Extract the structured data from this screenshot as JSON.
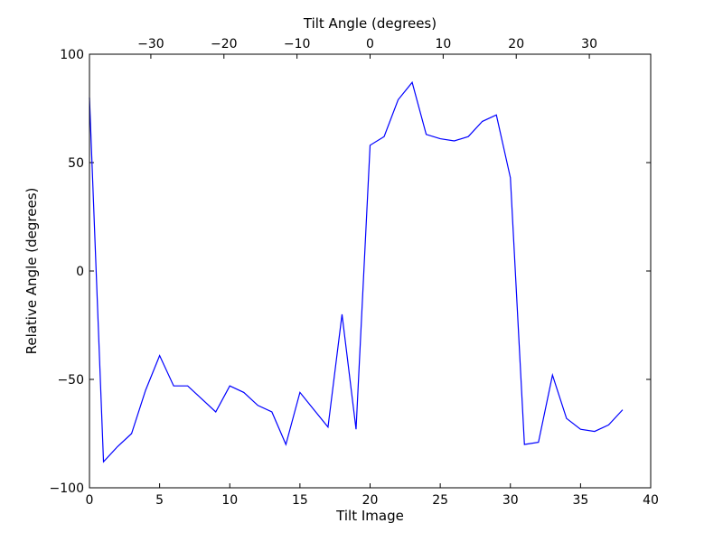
{
  "chart_data": {
    "type": "line",
    "xlabel": "Tilt Image",
    "ylabel": "Relative Angle (degrees)",
    "x2label": "Tilt Angle (degrees)",
    "xlim": [
      0,
      40
    ],
    "ylim": [
      -100,
      100
    ],
    "x2lim": [
      -38.4,
      38.4
    ],
    "xticks": [
      0,
      5,
      10,
      15,
      20,
      25,
      30,
      35,
      40
    ],
    "yticks": [
      -100,
      -50,
      0,
      50,
      100
    ],
    "x2ticks": [
      -30,
      -20,
      -10,
      0,
      10,
      20,
      30
    ],
    "x_tick_labels": [
      "0",
      "5",
      "10",
      "15",
      "20",
      "25",
      "30",
      "35",
      "40"
    ],
    "y_tick_labels": [
      "−100",
      "−50",
      "0",
      "50",
      "100"
    ],
    "x2_tick_labels": [
      "−30",
      "−20",
      "−10",
      "0",
      "10",
      "20",
      "30"
    ],
    "grid": false,
    "line_color": "#0000ff",
    "series": [
      {
        "x": [
          0,
          1,
          2,
          3,
          4,
          5,
          6,
          7,
          8,
          9,
          10,
          11,
          12,
          13,
          14,
          15,
          16,
          17,
          18,
          19,
          20,
          21,
          22,
          23,
          24,
          25,
          26,
          27,
          28,
          29,
          30,
          31,
          32,
          33,
          34,
          35,
          36,
          37,
          38
        ],
        "values": [
          80,
          -88,
          -81,
          -75,
          -55,
          -39,
          -53,
          -53,
          -59,
          -65,
          -53,
          -56,
          -62,
          -65,
          -80,
          -56,
          -64,
          -72,
          -20,
          -73,
          58,
          62,
          79,
          87,
          63,
          61,
          60,
          62,
          69,
          72,
          43,
          -80,
          -79,
          -48,
          -68,
          -73,
          -74,
          -71,
          -64
        ]
      }
    ]
  }
}
